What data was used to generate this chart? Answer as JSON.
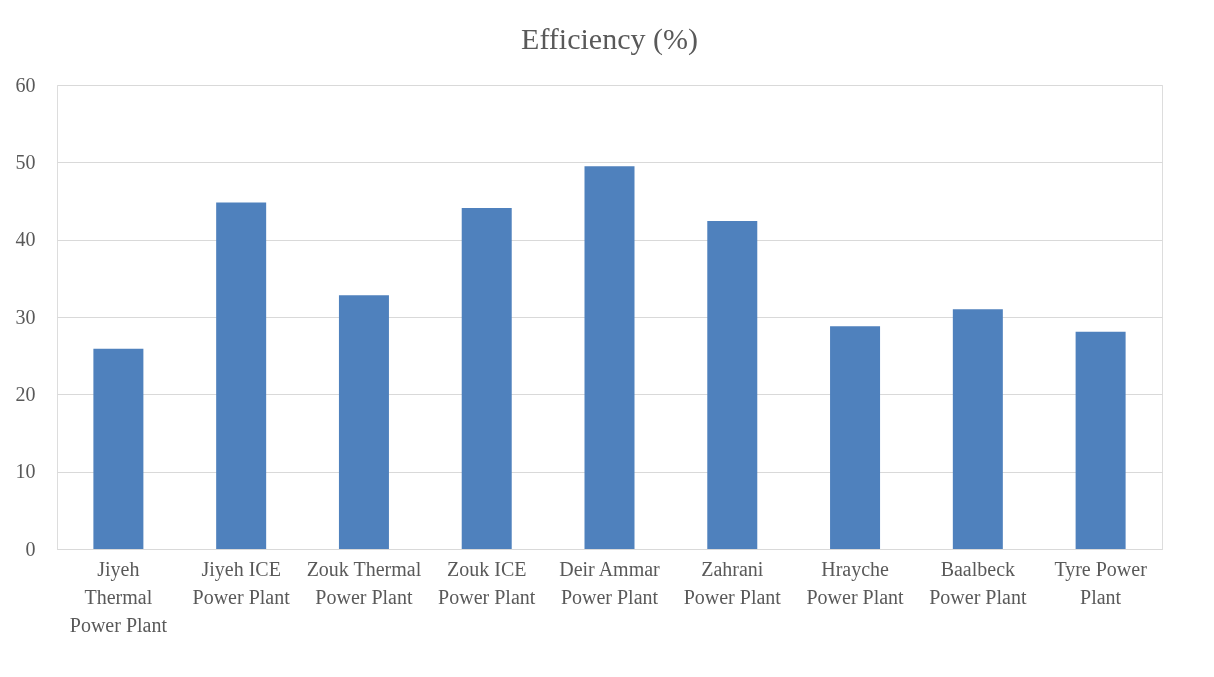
{
  "chart_data": {
    "type": "bar",
    "title": "Efficiency (%)",
    "categories": [
      "Jiyeh Thermal Power Plant",
      "Jiyeh ICE Power Plant",
      "Zouk Thermal Power Plant",
      "Zouk ICE Power Plant",
      "Deir Ammar Power Plant",
      "Zahrani Power Plant",
      "Hrayche Power Plant",
      "Baalbeck Power Plant",
      "Tyre Power Plant"
    ],
    "values": [
      25.9,
      44.8,
      32.8,
      44.1,
      49.5,
      42.4,
      28.8,
      31.0,
      28.1
    ],
    "color": "#4f81bd",
    "ylim": [
      0,
      60
    ],
    "yticks": [
      0,
      10,
      20,
      30,
      40,
      50,
      60
    ],
    "grid": "y"
  }
}
